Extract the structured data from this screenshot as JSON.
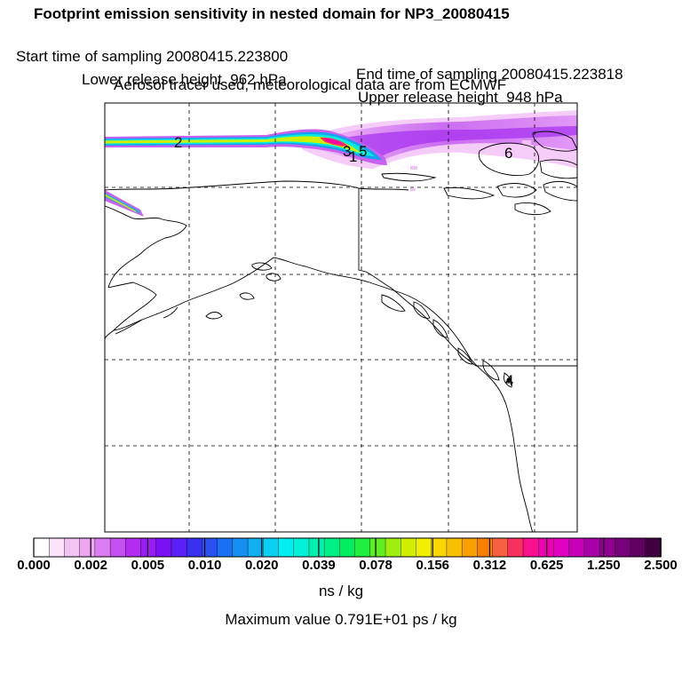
{
  "header": {
    "title": "Footprint emission sensitivity in nested domain for NP3_20080415",
    "start": "Start time of sampling 20080415.223800",
    "end": "End time of sampling 20080415.223818",
    "lower": "Lower release height  962 hPa",
    "upper": "Upper release height  948 hPa",
    "tracer": "Aerosol tracer used, meteorological data are from ECMWF"
  },
  "map": {
    "labels": [
      "2",
      "3",
      "1",
      "5",
      "6",
      "4"
    ],
    "grid": "dashed"
  },
  "colorbar": {
    "ticks": [
      "0.000",
      "0.002",
      "0.005",
      "0.010",
      "0.020",
      "0.039",
      "0.078",
      "0.156",
      "0.312",
      "0.625",
      "1.250",
      "2.500"
    ],
    "colors": [
      "#ffffff",
      "#fbe3fb",
      "#f3c4f3",
      "#eca6f2",
      "#d97df0",
      "#c54ff0",
      "#b22df0",
      "#9a1bf3",
      "#7b10f5",
      "#5a20f5",
      "#3a30f0",
      "#2a50f2",
      "#1a70f2",
      "#1590f0",
      "#10b0f0",
      "#08d0f0",
      "#00f0f0",
      "#00f0d8",
      "#00f0b0",
      "#00f088",
      "#00ee60",
      "#20ee40",
      "#60ee20",
      "#a0ee10",
      "#d0ee00",
      "#f0f000",
      "#f8d800",
      "#f8c000",
      "#f8a000",
      "#f88000",
      "#f86040",
      "#f83060",
      "#f81090",
      "#f000b0",
      "#e000c0",
      "#c800b8",
      "#a800a8",
      "#900090",
      "#780078",
      "#600060",
      "#400040"
    ],
    "units": "ns / kg",
    "max_value": "Maximum value  0.791E+01 ps / kg"
  }
}
